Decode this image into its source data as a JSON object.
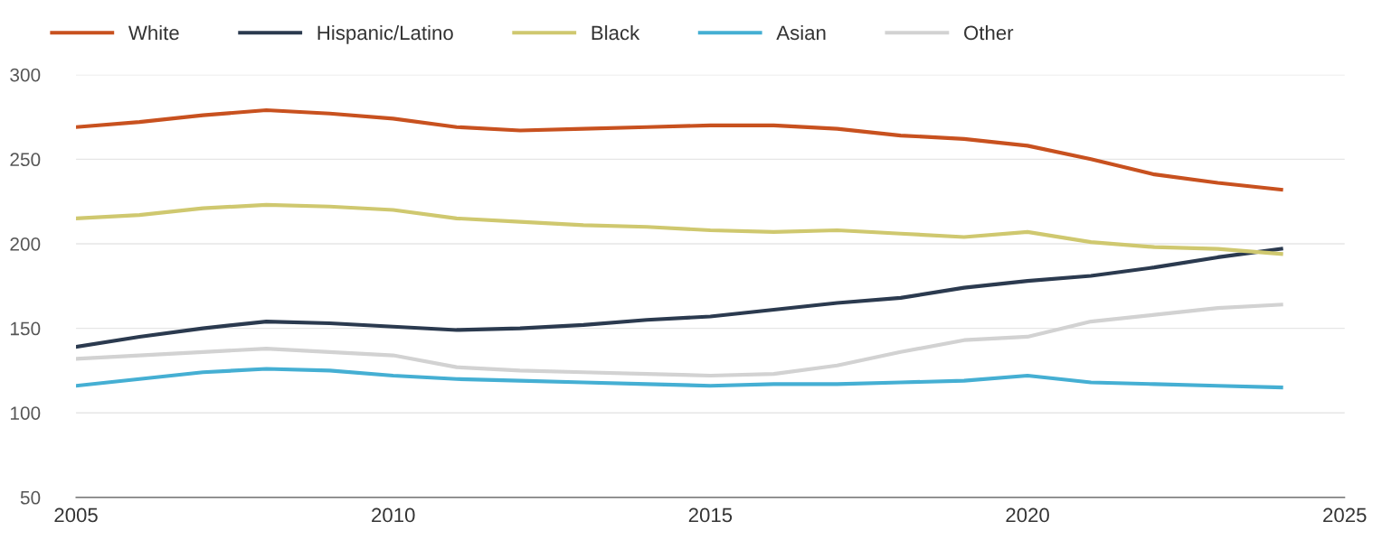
{
  "chart_data": {
    "type": "line",
    "x": [
      2005,
      2006,
      2007,
      2008,
      2009,
      2010,
      2011,
      2012,
      2013,
      2014,
      2015,
      2016,
      2017,
      2018,
      2019,
      2020,
      2021,
      2022,
      2023,
      2024
    ],
    "series": [
      {
        "name": "White",
        "color": "#c8511f",
        "values": [
          269,
          272,
          276,
          279,
          277,
          274,
          269,
          267,
          268,
          269,
          270,
          270,
          268,
          264,
          262,
          258,
          250,
          241,
          236,
          232
        ]
      },
      {
        "name": "Hispanic/Latino",
        "color": "#2b3a4f",
        "values": [
          139,
          145,
          150,
          154,
          153,
          151,
          149,
          150,
          152,
          155,
          157,
          161,
          165,
          168,
          174,
          178,
          181,
          186,
          192,
          197
        ]
      },
      {
        "name": "Black",
        "color": "#cfc86f",
        "values": [
          215,
          217,
          221,
          223,
          222,
          220,
          215,
          213,
          211,
          210,
          208,
          207,
          208,
          206,
          204,
          207,
          201,
          198,
          197,
          194
        ]
      },
      {
        "name": "Asian",
        "color": "#45afd3",
        "values": [
          116,
          120,
          124,
          126,
          125,
          122,
          120,
          119,
          118,
          117,
          116,
          117,
          117,
          118,
          119,
          122,
          118,
          117,
          116,
          115
        ]
      },
      {
        "name": "Other",
        "color": "#d2d2d2",
        "values": [
          132,
          134,
          136,
          138,
          136,
          134,
          127,
          125,
          124,
          123,
          122,
          123,
          128,
          136,
          143,
          145,
          154,
          158,
          162,
          164
        ]
      }
    ],
    "xlim": [
      2005,
      2025
    ],
    "xticks": [
      2005,
      2010,
      2015,
      2020,
      2025
    ],
    "ylim": [
      50,
      300
    ],
    "yticks": [
      50,
      100,
      150,
      200,
      250,
      300
    ],
    "grid": "y",
    "legend": "top",
    "marker": "none",
    "line_style": "solid"
  }
}
